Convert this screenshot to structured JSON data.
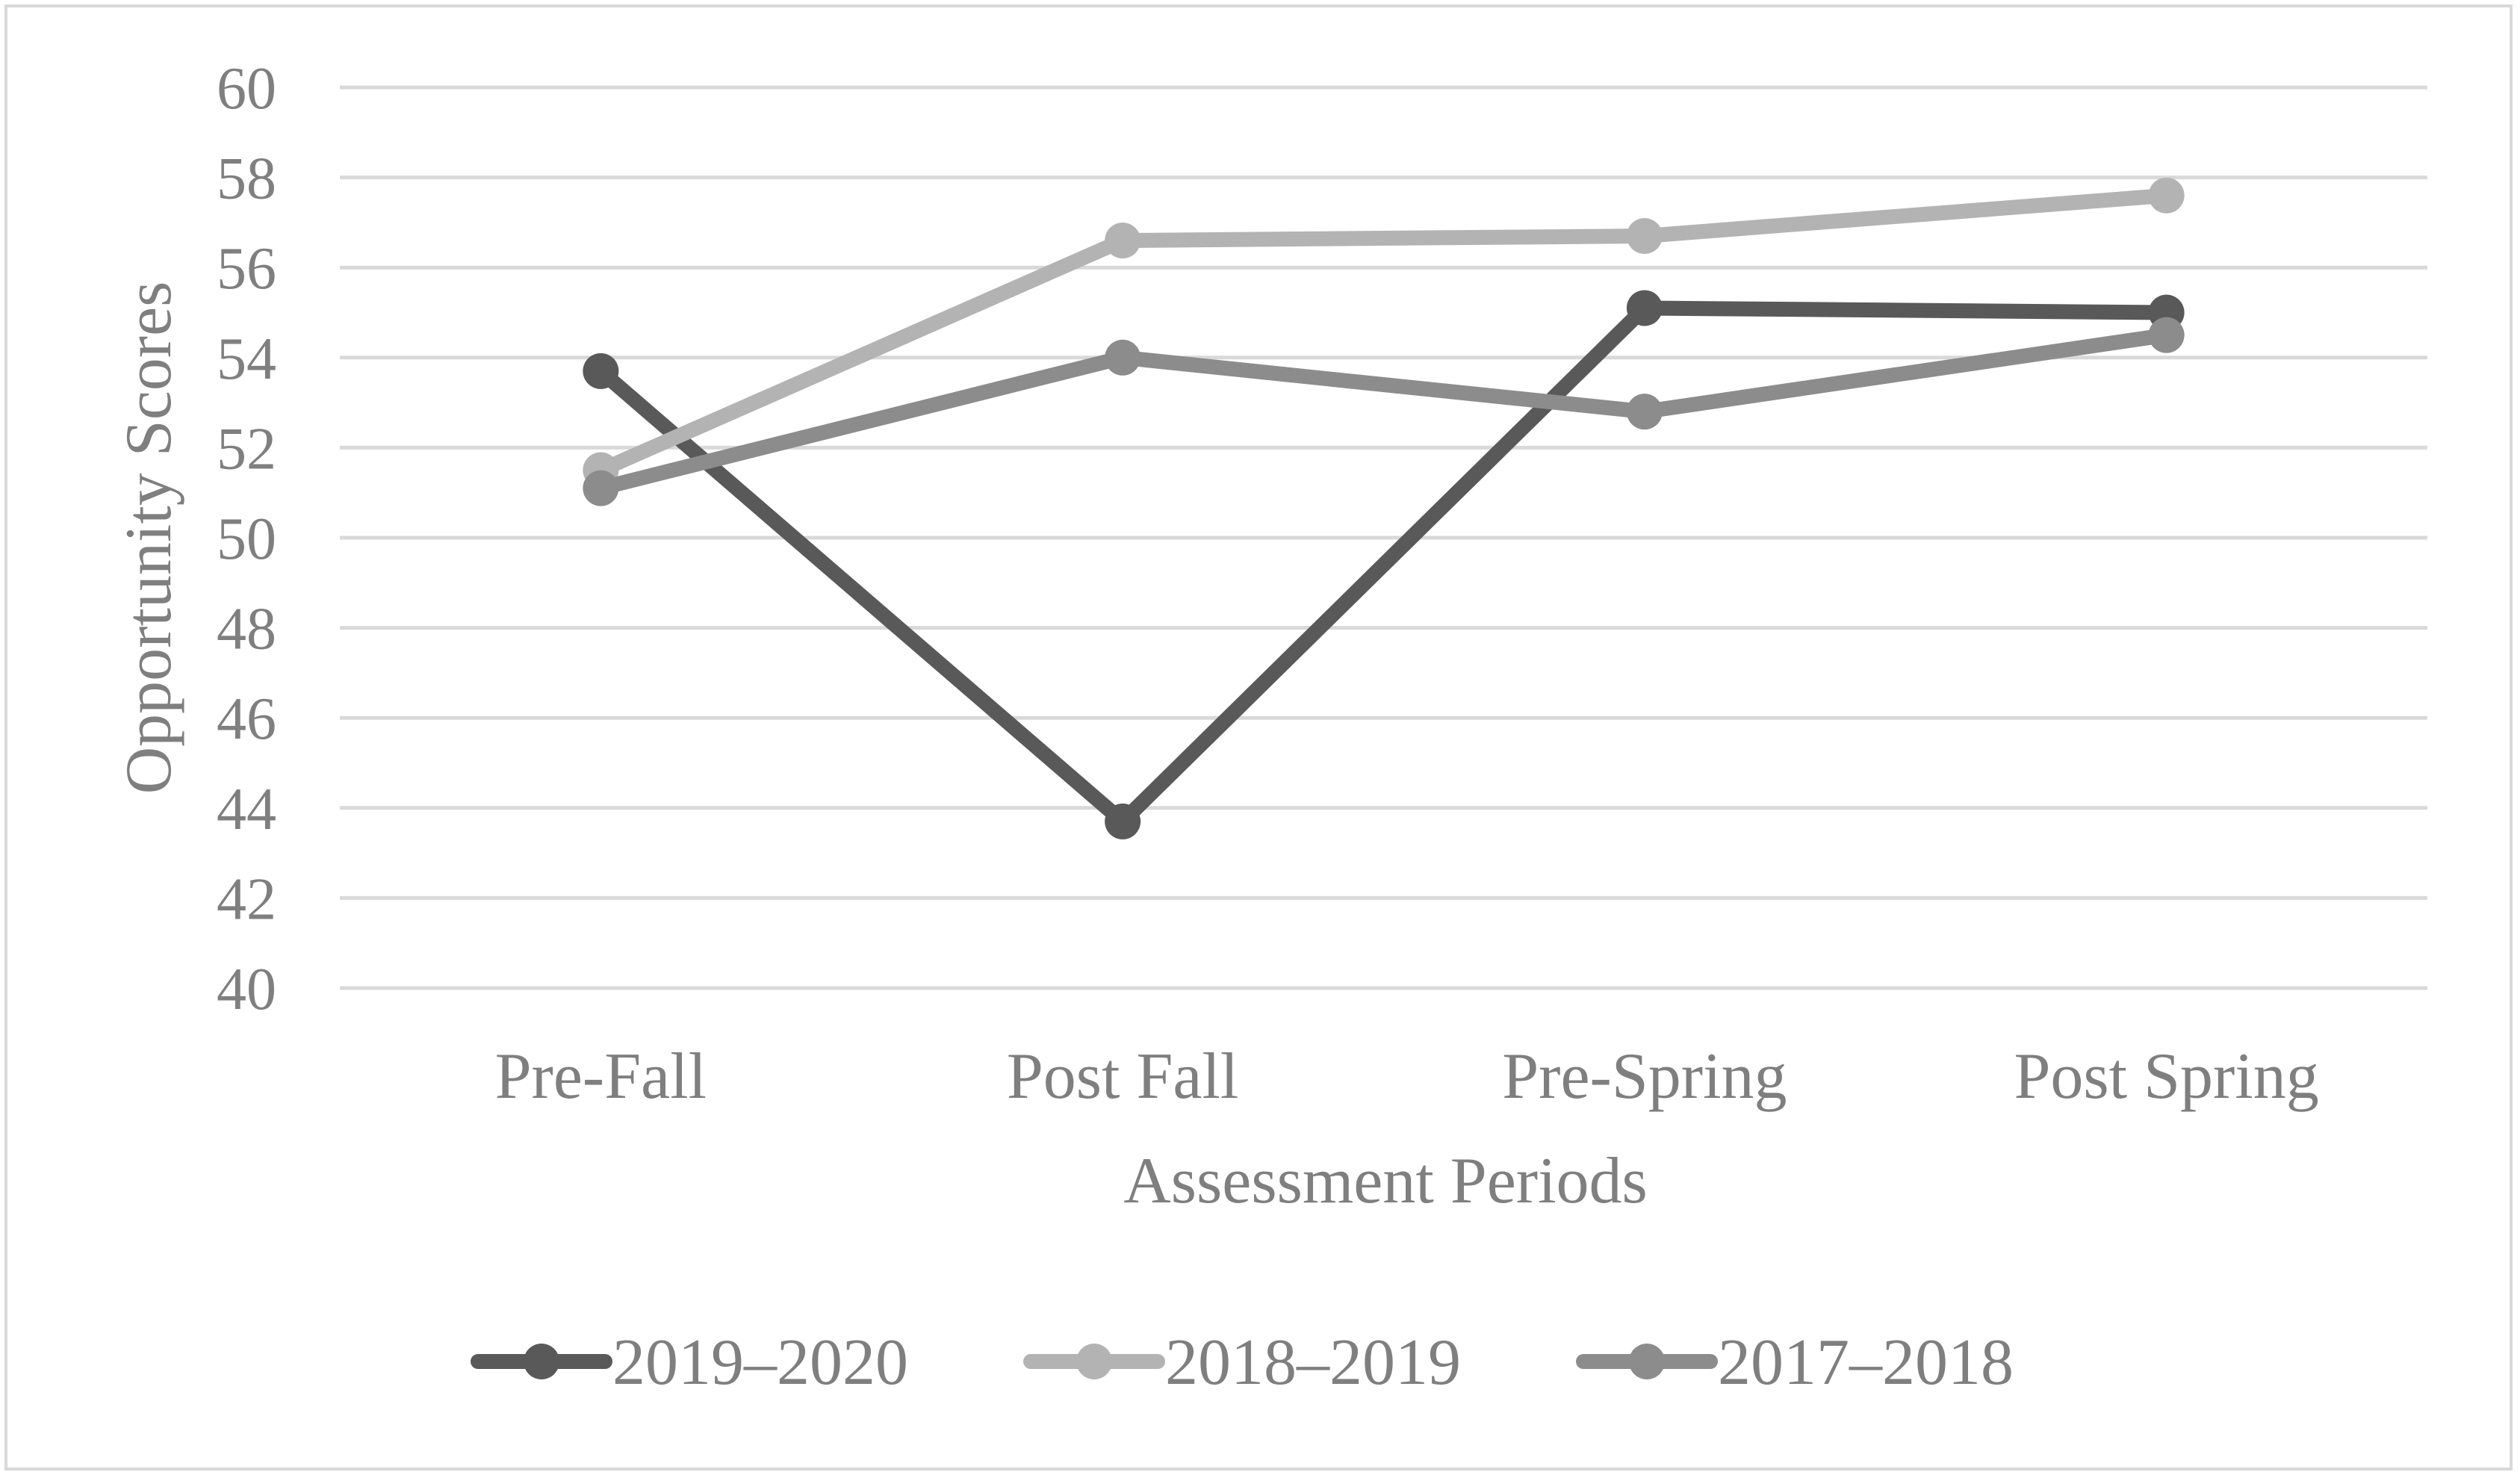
{
  "chart_data": {
    "type": "line",
    "title": "",
    "xlabel": "Assessment Periods",
    "ylabel": "Opportunity Scores",
    "categories": [
      "Pre-Fall",
      "Post Fall",
      "Pre-Spring",
      "Post Spring"
    ],
    "ylim": [
      40,
      60
    ],
    "yticks": [
      "40",
      "42",
      "44",
      "46",
      "48",
      "50",
      "52",
      "54",
      "56",
      "58",
      "60"
    ],
    "grid": true,
    "legend_position": "bottom",
    "series": [
      {
        "name": "2019–2020",
        "values": [
          53.7,
          43.7,
          55.1,
          55.0
        ],
        "color": "#595959"
      },
      {
        "name": "2018–2019",
        "values": [
          51.5,
          56.6,
          56.7,
          57.6
        ],
        "color": "#b3b3b3"
      },
      {
        "name": "2017–2018",
        "values": [
          51.1,
          54.0,
          52.8,
          54.5
        ],
        "color": "#8c8c8c"
      }
    ]
  }
}
